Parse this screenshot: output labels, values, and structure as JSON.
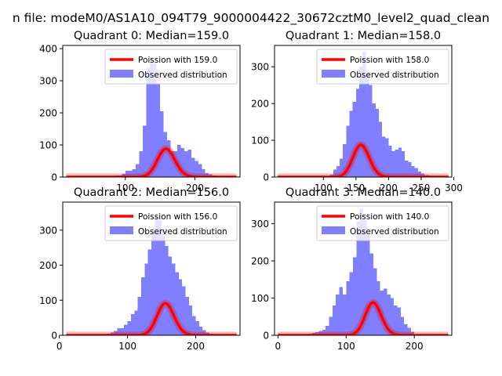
{
  "window": {
    "suptitle": "n file: modeM0/AS1A10_094T79_9000004422_30672cztM0_level2_quad_clean"
  },
  "colors": {
    "fit_line": "#ff0000",
    "hist_fill": "#7f7fff"
  },
  "chart_data": [
    {
      "type": "bar",
      "title": "Quadrant 0: Median=159.0",
      "xlim": [
        10,
        265
      ],
      "ylim": [
        0,
        410
      ],
      "xticks": [
        100,
        200
      ],
      "yticks": [
        0,
        100,
        200,
        300,
        400
      ],
      "legend": {
        "location": "top-right",
        "entries": [
          "Poission with 159.0",
          "Observed distribution"
        ]
      },
      "poisson_mean": 159.0,
      "poisson_scale": 2775,
      "hist_start": 60,
      "bin_width": 5,
      "values": [
        0,
        2,
        2,
        3,
        4,
        5,
        5,
        10,
        20,
        20,
        25,
        40,
        80,
        160,
        340,
        375,
        355,
        290,
        205,
        140,
        115,
        80,
        80,
        100,
        90,
        80,
        85,
        60,
        50,
        40,
        25,
        12,
        8,
        5
      ]
    },
    {
      "type": "bar",
      "title": "Quadrant 1: Median=158.0",
      "xlim": [
        25,
        297
      ],
      "ylim": [
        0,
        358
      ],
      "xticks": [
        100,
        150,
        200,
        250,
        300
      ],
      "yticks": [
        0,
        100,
        200,
        300
      ],
      "legend": {
        "location": "top-right",
        "entries": [
          "Poission with 158.0",
          "Observed distribution"
        ]
      },
      "poisson_mean": 158.0,
      "poisson_scale": 2750,
      "hist_start": 85,
      "bin_width": 5,
      "values": [
        1,
        0,
        1,
        2,
        2,
        6,
        20,
        30,
        50,
        90,
        140,
        180,
        205,
        240,
        300,
        340,
        280,
        250,
        200,
        185,
        150,
        110,
        105,
        85,
        70,
        75,
        80,
        70,
        45,
        40,
        30,
        25,
        15,
        10,
        5,
        4
      ]
    },
    {
      "type": "bar",
      "title": "Quadrant 2: Median=156.0",
      "xlim": [
        5,
        265
      ],
      "ylim": [
        0,
        380
      ],
      "xticks": [
        0,
        100,
        200
      ],
      "yticks": [
        0,
        100,
        200,
        300
      ],
      "legend": {
        "location": "top-right",
        "entries": [
          "Poission with 156.0",
          "Observed distribution"
        ]
      },
      "poisson_mean": 156.0,
      "poisson_scale": 2850,
      "hist_start": 50,
      "bin_width": 5,
      "values": [
        1,
        1,
        2,
        3,
        5,
        8,
        12,
        20,
        20,
        30,
        40,
        60,
        70,
        110,
        165,
        205,
        245,
        305,
        340,
        330,
        300,
        255,
        225,
        205,
        180,
        160,
        140,
        110,
        85,
        55,
        40,
        25,
        15,
        8,
        5,
        3
      ]
    },
    {
      "type": "bar",
      "title": "Quadrant 3: Median=140.0",
      "xlim": [
        -5,
        255
      ],
      "ylim": [
        0,
        358
      ],
      "xticks": [
        0,
        100,
        200
      ],
      "yticks": [
        0,
        100,
        200,
        300
      ],
      "legend": {
        "location": "top-right",
        "entries": [
          "Poission with 140.0",
          "Observed distribution"
        ]
      },
      "poisson_mean": 140.0,
      "poisson_scale": 2600,
      "hist_start": 25,
      "bin_width": 5,
      "values": [
        1,
        1,
        2,
        3,
        4,
        6,
        8,
        12,
        15,
        25,
        50,
        80,
        110,
        130,
        110,
        145,
        170,
        210,
        305,
        340,
        310,
        270,
        220,
        180,
        145,
        120,
        125,
        110,
        100,
        80,
        75,
        50,
        30,
        20,
        10,
        3
      ]
    }
  ]
}
